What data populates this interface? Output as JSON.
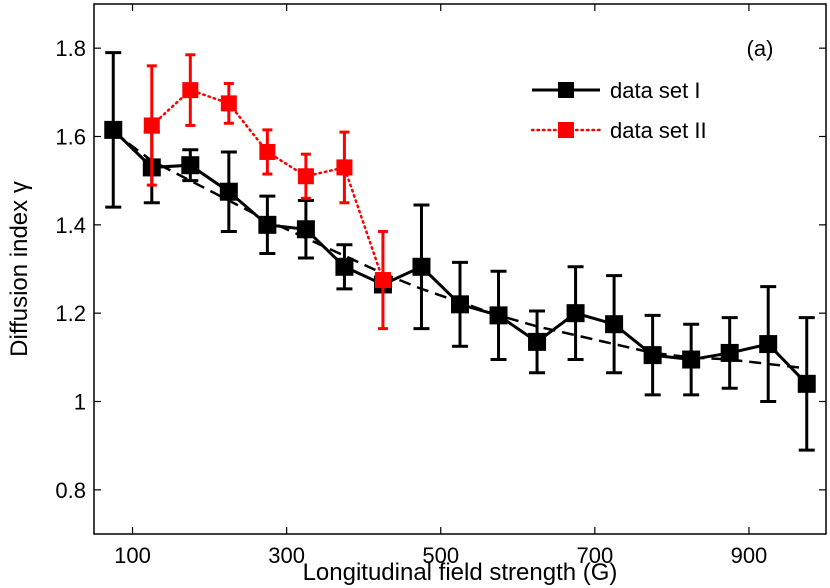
{
  "chart_data": {
    "type": "line",
    "panel_label": "(a)",
    "xlabel": "Longitudinal field strength (G)",
    "ylabel": "Diffusion index γ",
    "xlim": [
      50,
      1000
    ],
    "ylim": [
      0.7,
      1.9
    ],
    "xticks": [
      100,
      300,
      500,
      700,
      900
    ],
    "yticks": [
      0.8,
      1.0,
      1.2,
      1.4,
      1.6,
      1.8
    ],
    "ytick_labels": [
      "0.8",
      "1",
      "1.2",
      "1.4",
      "1.6",
      "1.8"
    ],
    "legend_position": "top-right",
    "series": [
      {
        "name": "data set I",
        "color": "#000000",
        "line_style": "solid",
        "marker": "square",
        "x": [
          75,
          125,
          175,
          225,
          275,
          325,
          375,
          425,
          475,
          525,
          575,
          625,
          675,
          725,
          775,
          825,
          875,
          925,
          975
        ],
        "y": [
          1.615,
          1.53,
          1.535,
          1.475,
          1.4,
          1.39,
          1.305,
          1.265,
          1.305,
          1.22,
          1.195,
          1.135,
          1.2,
          1.175,
          1.105,
          1.095,
          1.11,
          1.13,
          1.04
        ],
        "err": [
          0.175,
          0.08,
          0.035,
          0.09,
          0.065,
          0.065,
          0.05,
          0.015,
          0.14,
          0.095,
          0.1,
          0.07,
          0.105,
          0.11,
          0.09,
          0.08,
          0.08,
          0.13,
          0.15
        ]
      },
      {
        "name": "data set II",
        "color": "#ff0000",
        "line_style": "dotted",
        "marker": "square",
        "x": [
          125,
          175,
          225,
          275,
          325,
          375,
          425
        ],
        "y": [
          1.625,
          1.705,
          1.675,
          1.565,
          1.51,
          1.53,
          1.275
        ],
        "err": [
          0.135,
          0.08,
          0.045,
          0.05,
          0.05,
          0.08,
          0.11
        ]
      },
      {
        "name": "fit",
        "color": "#000000",
        "line_style": "dashed",
        "marker": "none",
        "show_in_legend": false,
        "x": [
          75,
          125,
          175,
          225,
          275,
          325,
          375,
          425,
          475,
          525,
          575,
          625,
          675,
          725,
          775,
          825,
          875,
          925,
          975
        ],
        "y": [
          1.61,
          1.545,
          1.5,
          1.455,
          1.41,
          1.37,
          1.33,
          1.29,
          1.255,
          1.225,
          1.195,
          1.17,
          1.15,
          1.13,
          1.11,
          1.1,
          1.095,
          1.085,
          1.075
        ]
      }
    ]
  }
}
